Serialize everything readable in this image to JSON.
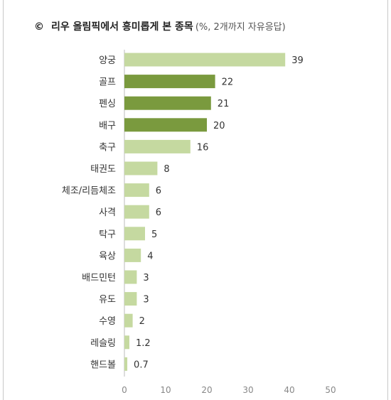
{
  "title": {
    "mark": "©",
    "main": "리우 올림픽에서 흥미롭게 본 종목",
    "note": "(%, 2개까지 자유응답)"
  },
  "colors": {
    "light_bar": "#c5d9a0",
    "dark_bar": "#7a9a3e",
    "axis": "#bbbbbb"
  },
  "chart_data": {
    "type": "bar",
    "orientation": "horizontal",
    "title": "리우 올림픽에서 흥미롭게 본 종목",
    "subtitle": "(%, 2개까지 자유응답)",
    "categories": [
      "양궁",
      "골프",
      "펜싱",
      "배구",
      "축구",
      "태권도",
      "체조/리듬체조",
      "사격",
      "탁구",
      "육상",
      "배드민턴",
      "유도",
      "수영",
      "레슬링",
      "핸드볼"
    ],
    "values": [
      39,
      22,
      21,
      20,
      16,
      8,
      6,
      6,
      5,
      4,
      3,
      3,
      2,
      1.2,
      0.7
    ],
    "value_labels": [
      "39",
      "22",
      "21",
      "20",
      "16",
      "8",
      "6",
      "6",
      "5",
      "4",
      "3",
      "3",
      "2",
      "1.2",
      "0.7"
    ],
    "highlight": [
      false,
      true,
      true,
      true,
      false,
      false,
      false,
      false,
      false,
      false,
      false,
      false,
      false,
      false,
      false
    ],
    "xlim": [
      0,
      50
    ],
    "xticks": [
      "0",
      "10",
      "20",
      "30",
      "40",
      "50"
    ],
    "grid": false,
    "legend": "none"
  }
}
